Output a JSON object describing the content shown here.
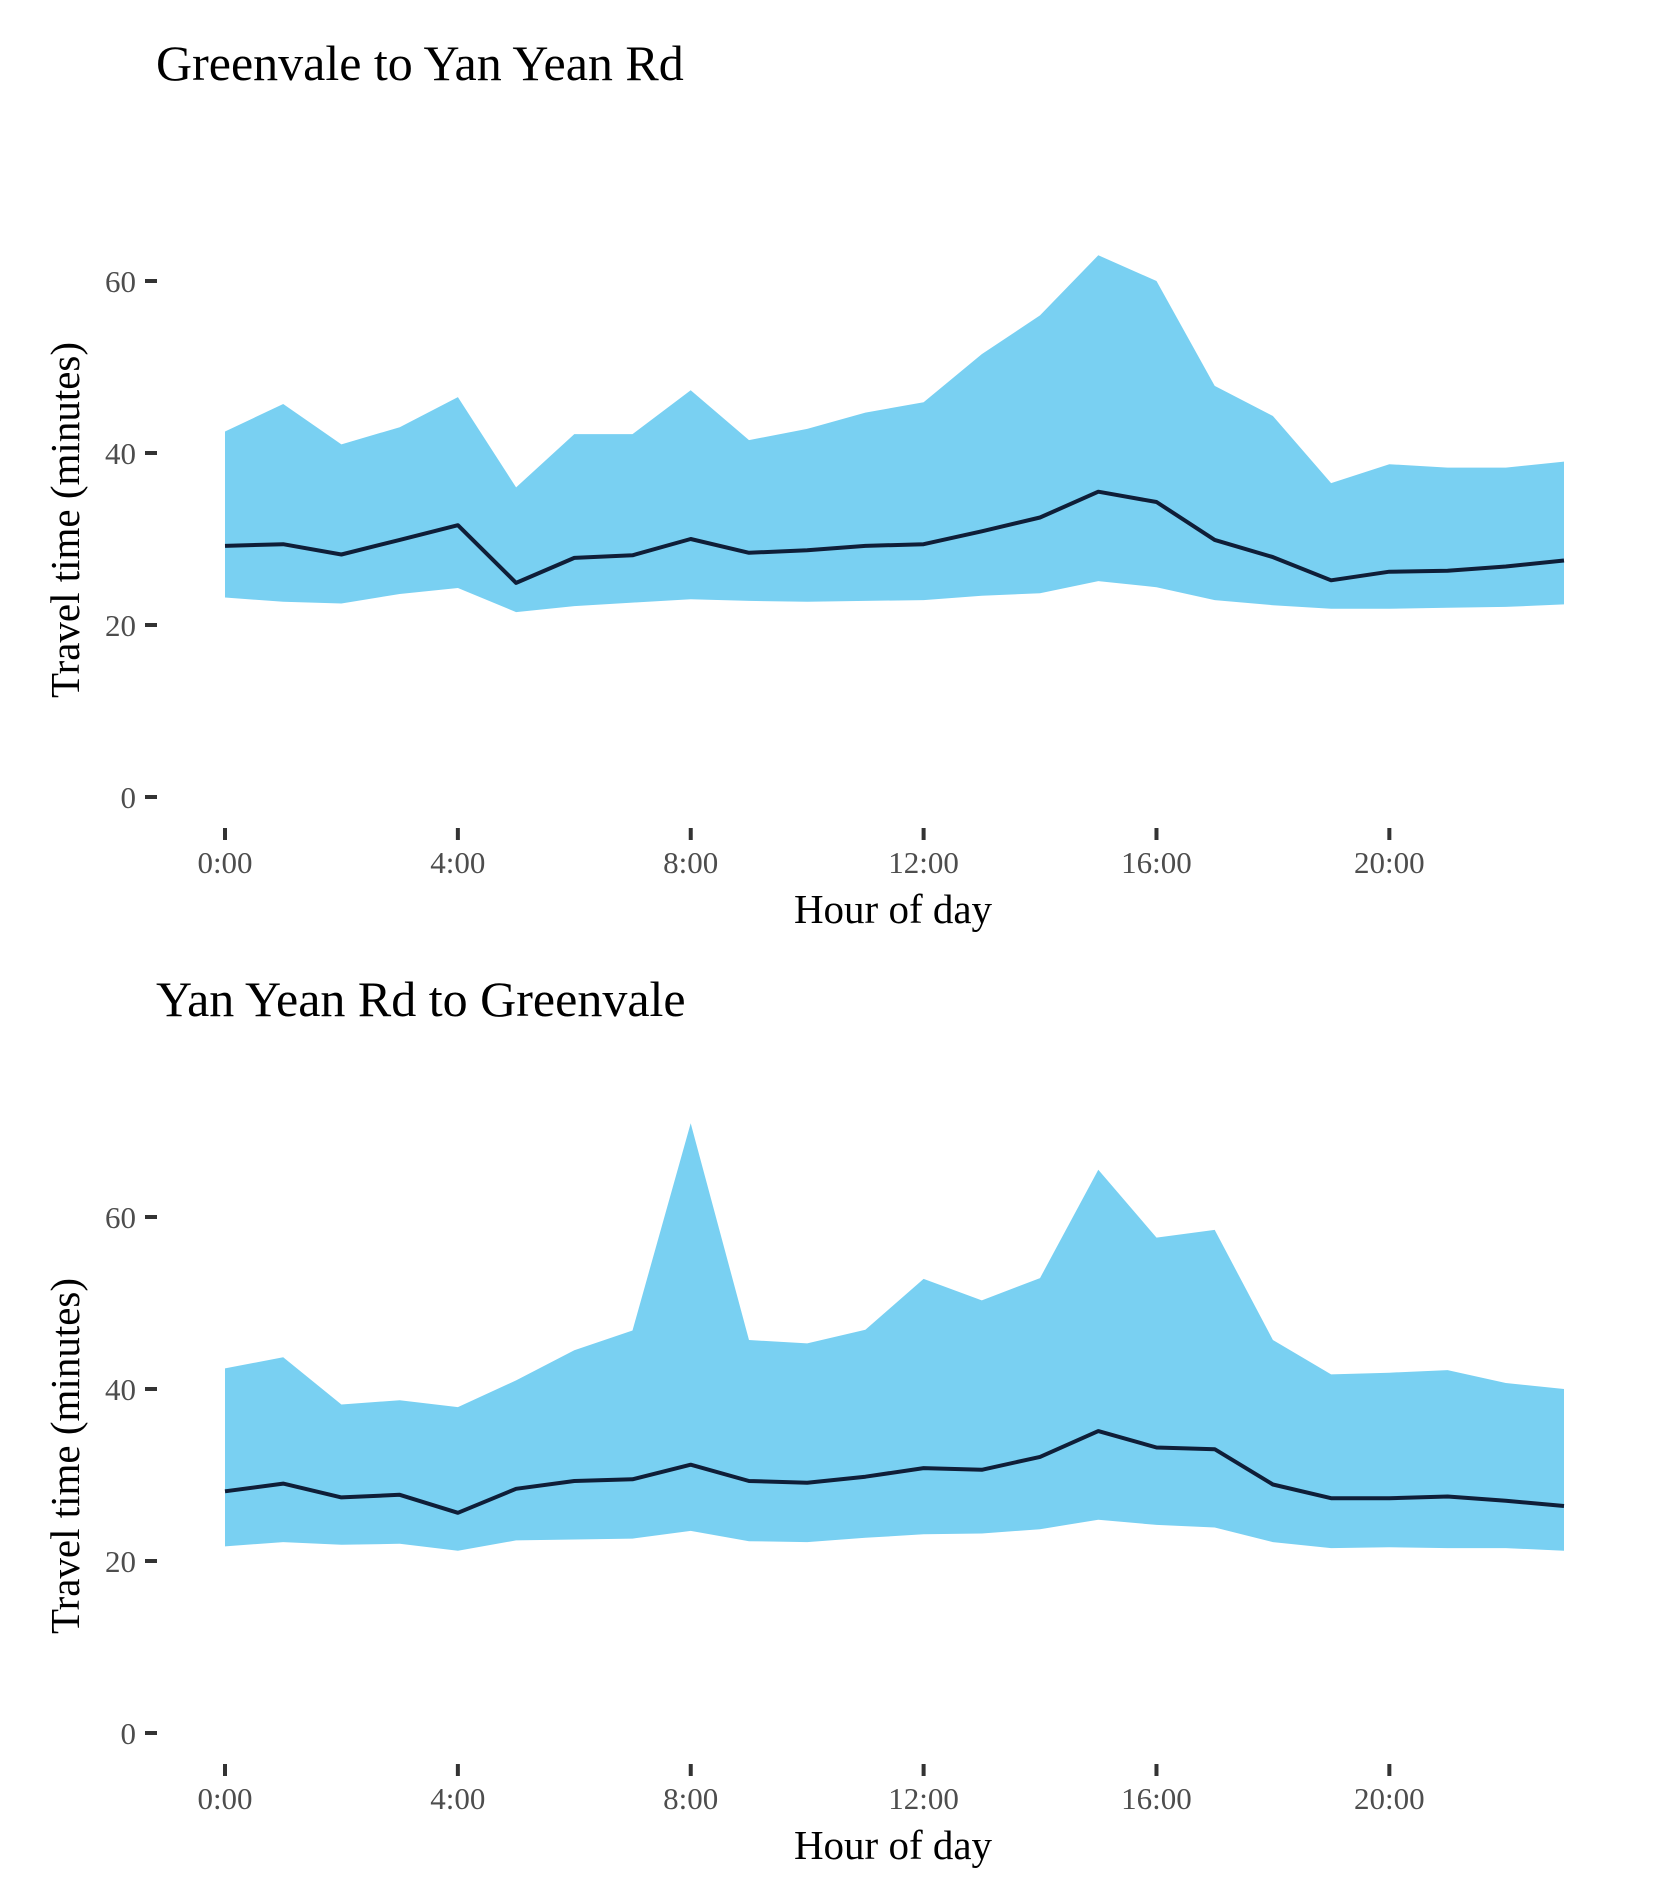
{
  "colors": {
    "band": "#79d0f2",
    "line": "#0f1e38",
    "tick_text": "#4d4d4d",
    "tick_mark": "#333333",
    "text": "#000000"
  },
  "chart_data": [
    {
      "type": "area",
      "title": "Greenvale to Yan Yean Rd",
      "xlabel": "Hour of day",
      "ylabel": "Travel time (minutes)",
      "xlim": [
        0,
        23
      ],
      "ylim": [
        0,
        60
      ],
      "x_ticks": [
        "0:00",
        "4:00",
        "8:00",
        "12:00",
        "16:00",
        "20:00"
      ],
      "x_tick_hours": [
        0,
        4,
        8,
        12,
        16,
        20
      ],
      "y_ticks": [
        0,
        20,
        40,
        60
      ],
      "grid": false,
      "hours": [
        0,
        1,
        2,
        3,
        4,
        5,
        6,
        7,
        8,
        9,
        10,
        11,
        12,
        13,
        14,
        15,
        16,
        17,
        18,
        19,
        20,
        21,
        22,
        23
      ],
      "series": [
        {
          "role": "band",
          "upper": [
            42.5,
            45.7,
            41.0,
            43.0,
            46.5,
            36.0,
            42.2,
            42.2,
            47.3,
            41.5,
            42.8,
            44.7,
            45.9,
            51.5,
            56.0,
            63.0,
            60.0,
            47.8,
            44.3,
            36.5,
            38.7,
            38.3,
            38.3,
            39.0
          ],
          "lower": [
            23.2,
            22.7,
            22.5,
            23.6,
            24.3,
            21.5,
            22.2,
            22.6,
            23.0,
            22.8,
            22.7,
            22.8,
            22.9,
            23.4,
            23.7,
            25.1,
            24.4,
            22.9,
            22.3,
            21.9,
            21.9,
            22.0,
            22.1,
            22.4
          ]
        },
        {
          "role": "median",
          "values": [
            29.2,
            29.4,
            28.2,
            29.9,
            31.6,
            24.9,
            27.8,
            28.1,
            30.0,
            28.4,
            28.7,
            29.2,
            29.4,
            30.9,
            32.5,
            35.5,
            34.3,
            29.9,
            27.9,
            25.2,
            26.2,
            26.3,
            26.8,
            27.5
          ]
        }
      ]
    },
    {
      "type": "area",
      "title": "Yan Yean Rd to Greenvale",
      "xlabel": "Hour of day",
      "ylabel": "Travel time (minutes)",
      "xlim": [
        0,
        23
      ],
      "ylim": [
        0,
        60
      ],
      "x_ticks": [
        "0:00",
        "4:00",
        "8:00",
        "12:00",
        "16:00",
        "20:00"
      ],
      "x_tick_hours": [
        0,
        4,
        8,
        12,
        16,
        20
      ],
      "y_ticks": [
        0,
        20,
        40,
        60
      ],
      "grid": false,
      "hours": [
        0,
        1,
        2,
        3,
        4,
        5,
        6,
        7,
        8,
        9,
        10,
        11,
        12,
        13,
        14,
        15,
        16,
        17,
        18,
        19,
        20,
        21,
        22,
        23
      ],
      "series": [
        {
          "role": "band",
          "upper": [
            42.4,
            43.7,
            38.2,
            38.7,
            37.9,
            41.0,
            44.5,
            46.8,
            70.9,
            45.7,
            45.3,
            46.9,
            52.8,
            50.3,
            52.9,
            65.5,
            57.6,
            58.5,
            45.7,
            41.7,
            41.9,
            42.2,
            40.7,
            40.0
          ],
          "lower": [
            21.7,
            22.2,
            21.9,
            22.0,
            21.2,
            22.4,
            22.5,
            22.6,
            23.5,
            22.3,
            22.2,
            22.7,
            23.1,
            23.2,
            23.7,
            24.8,
            24.2,
            23.9,
            22.2,
            21.5,
            21.6,
            21.5,
            21.5,
            21.2
          ]
        },
        {
          "role": "median",
          "values": [
            28.1,
            29.0,
            27.4,
            27.7,
            25.6,
            28.4,
            29.3,
            29.5,
            31.2,
            29.3,
            29.1,
            29.8,
            30.8,
            30.6,
            32.1,
            35.1,
            33.2,
            33.0,
            28.9,
            27.3,
            27.3,
            27.5,
            27.0,
            26.4
          ]
        }
      ]
    }
  ]
}
